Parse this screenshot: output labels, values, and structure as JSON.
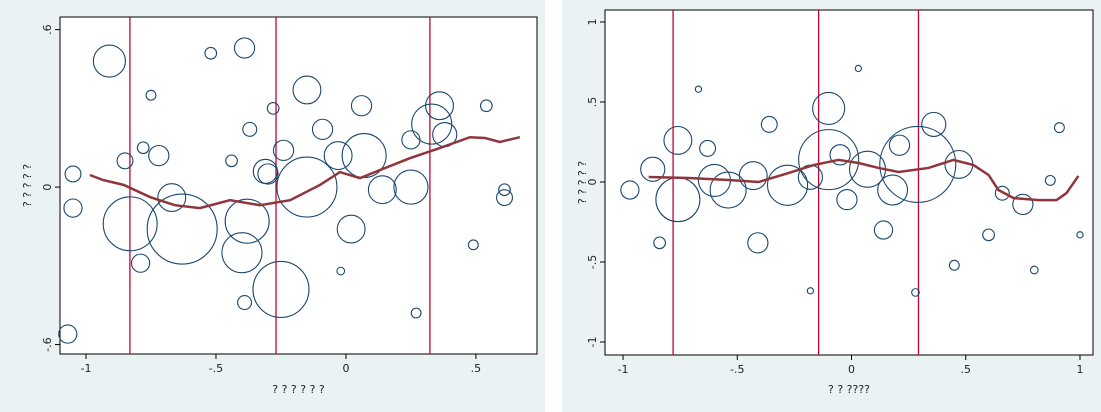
{
  "chart_data": [
    {
      "type": "scatter",
      "x_label": "? ? ? ? ? ?",
      "y_label": "? ? ? ? ?",
      "xlim": [
        -1.1,
        0.735
      ],
      "ylim": [
        -0.636,
        0.648
      ],
      "xticks": [
        -1,
        {
          "value": -0.5,
          "label": "-.5"
        },
        0,
        {
          "value": 0.5,
          "label": ".5"
        }
      ],
      "yticks": [
        {
          "value": -0.6,
          "label": "-.6"
        },
        0,
        {
          "value": 0.6,
          "label": ".6"
        }
      ],
      "vlines": [
        -0.831,
        -0.269,
        0.323
      ],
      "vline_color": "#c10534",
      "series": [
        {
          "color": "#1a476f",
          "x": [
            -0.91,
            -0.83,
            -0.72,
            -0.63,
            -0.67,
            -0.79,
            -1.05,
            -1.05,
            -1.07,
            -0.39,
            -0.52,
            -0.4,
            -0.38,
            -0.25,
            -0.15,
            -0.31,
            -0.15,
            -0.09,
            -0.03,
            0.07,
            0.02,
            0.06,
            0.14,
            0.25,
            0.36,
            0.33,
            0.38,
            0.25,
            0.54,
            0.61,
            0.61,
            -0.39,
            0.27,
            -0.37,
            -0.28,
            -0.78,
            -0.75,
            -0.24,
            -0.3,
            -0.85,
            0.49,
            -0.02,
            -0.44
          ],
          "values": [
            0.48,
            -0.14,
            0.12,
            -0.16,
            -0.04,
            -0.29,
            0.05,
            -0.08,
            -0.56,
            0.53,
            0.51,
            -0.25,
            -0.13,
            -0.39,
            0,
            0.06,
            0.37,
            0.22,
            0.12,
            0.12,
            -0.16,
            0.31,
            -0.01,
            0,
            0.31,
            0.24,
            0.2,
            0.18,
            0.31,
            -0.01,
            -0.04,
            -0.44,
            -0.48,
            0.22,
            0.3,
            0.15,
            0.35,
            0.14,
            0.05,
            0.1,
            -0.22,
            -0.32,
            0.1
          ],
          "sizes": [
            53,
            150,
            21,
            253,
            40,
            17,
            13,
            17,
            17,
            21,
            7,
            83,
            100,
            162,
            186,
            30,
            40,
            21,
            40,
            100,
            40,
            21,
            40,
            60,
            40,
            83,
            30,
            17,
            7,
            7,
            13,
            10,
            5,
            10,
            7,
            7,
            5,
            21,
            21,
            13,
            5,
            3,
            7
          ]
        }
      ],
      "line": {
        "color": "#90353b",
        "x": [
          -0.985,
          -0.935,
          -0.854,
          -0.754,
          -0.658,
          -0.562,
          -0.446,
          -0.331,
          -0.215,
          -0.1,
          -0.023,
          0.054,
          0.131,
          0.246,
          0.362,
          0.477,
          0.535,
          0.592,
          0.669
        ],
        "values": [
          0.046,
          0.027,
          0.008,
          -0.038,
          -0.069,
          -0.08,
          -0.05,
          -0.069,
          -0.05,
          0.008,
          0.057,
          0.034,
          0.065,
          0.11,
          0.149,
          0.19,
          0.187,
          0.172,
          0.19
        ]
      }
    },
    {
      "type": "scatter",
      "x_label": "? ? ????",
      "y_label": "? ? ? ? ?",
      "xlim": [
        -1.079,
        1.057
      ],
      "ylim": [
        -1.081,
        1.075
      ],
      "xticks": [
        -1,
        {
          "value": -0.5,
          "label": "-.5"
        },
        0,
        {
          "value": 0.5,
          "label": ".5"
        },
        1
      ],
      "yticks": [
        -1,
        {
          "value": -0.5,
          "label": "-.5"
        },
        0,
        {
          "value": 0.5,
          "label": ".5"
        },
        1
      ],
      "vlines": [
        -0.781,
        -0.144,
        0.293
      ],
      "vline_color": "#c10534",
      "series": [
        {
          "color": "#1a476f",
          "x": [
            -0.76,
            -0.87,
            -0.76,
            -0.6,
            -0.43,
            -0.28,
            -0.1,
            -0.1,
            0.07,
            0.29,
            0.36,
            0.18,
            -0.41,
            0.66,
            0.75,
            0.87,
            0.91,
            -0.97,
            -0.84,
            -0.18,
            -0.02,
            0.47,
            1.0,
            0.8,
            0.28,
            -0.36,
            -0.63,
            -0.54,
            0.14,
            0.6,
            0.03,
            -0.67,
            -0.18,
            0.45,
            -0.05,
            0.21
          ],
          "values": [
            0.26,
            0.08,
            -0.11,
            0.01,
            0.04,
            -0.02,
            0.46,
            0.14,
            0.08,
            0.11,
            0.36,
            -0.05,
            -0.38,
            -0.07,
            -0.14,
            0.01,
            0.34,
            -0.05,
            -0.38,
            0.03,
            -0.11,
            0.11,
            -0.33,
            -0.55,
            -0.69,
            0.36,
            0.21,
            -0.05,
            -0.3,
            -0.33,
            0.71,
            0.58,
            -0.68,
            -0.52,
            0.17,
            0.23
          ],
          "sizes": [
            40,
            30,
            100,
            53,
            40,
            83,
            53,
            186,
            67,
            298,
            30,
            46,
            21,
            10,
            21,
            5,
            5,
            17,
            7,
            30,
            21,
            40,
            2,
            3,
            3,
            13,
            13,
            67,
            17,
            7,
            2,
            2,
            2,
            5,
            21,
            21
          ]
        }
      ],
      "line": {
        "color": "#90353b",
        "x": [
          -0.888,
          -0.713,
          -0.538,
          -0.407,
          -0.276,
          -0.166,
          -0.057,
          0.031,
          0.118,
          0.206,
          0.337,
          0.446,
          0.534,
          0.6,
          0.643,
          0.709,
          0.818,
          0.897,
          0.941,
          0.993
        ],
        "values": [
          0.031,
          0.025,
          0.013,
          0,
          0.056,
          0.106,
          0.138,
          0.119,
          0.088,
          0.063,
          0.088,
          0.138,
          0.106,
          0.044,
          -0.05,
          -0.1,
          -0.113,
          -0.113,
          -0.069,
          0.038
        ]
      }
    }
  ]
}
